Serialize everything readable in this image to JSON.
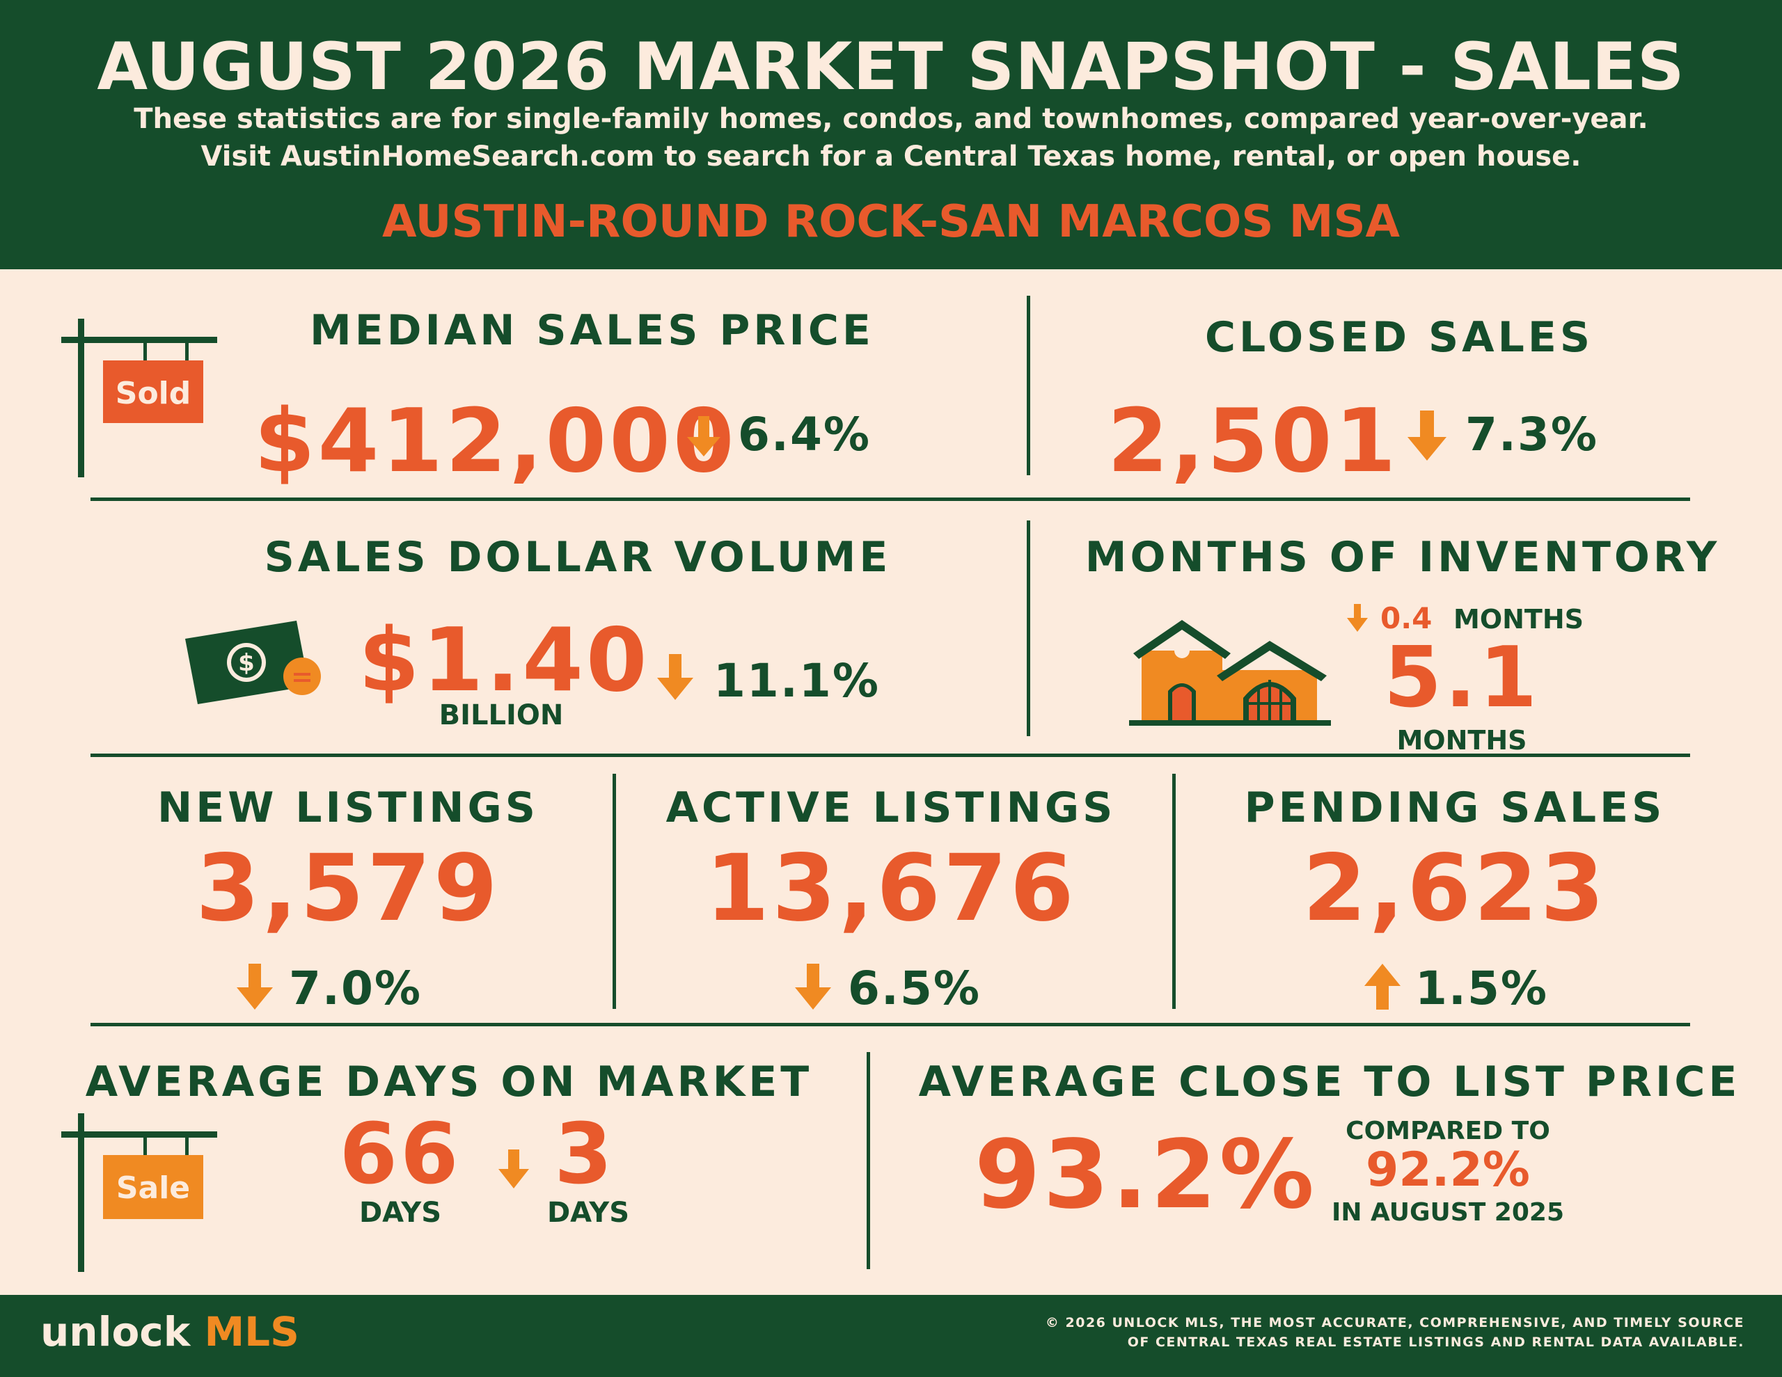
{
  "header": {
    "title": "AUGUST 2026 MARKET SNAPSHOT - SALES",
    "subtitle_line1": "These statistics are for single-family homes, condos, and townhomes, compared year-over-year.",
    "subtitle_line2": "Visit AustinHomeSearch.com to search for a Central Texas home, rental, or open house.",
    "region": "AUSTIN-ROUND ROCK-SAN MARCOS MSA"
  },
  "median_sales_price": {
    "label": "MEDIAN SALES PRICE",
    "sign_text": "Sold",
    "value": "$412,000",
    "change_direction": "down",
    "change": "6.4%"
  },
  "closed_sales": {
    "label": "CLOSED SALES",
    "value": "2,501",
    "change_direction": "down",
    "change": "7.3%"
  },
  "sales_dollar_volume": {
    "label": "SALES DOLLAR VOLUME",
    "value": "$1.40",
    "unit": "BILLION",
    "change_direction": "down",
    "change": "11.1%"
  },
  "months_of_inventory": {
    "label": "MONTHS OF INVENTORY",
    "change_direction": "down",
    "change_value": "0.4",
    "change_unit": "MONTHS",
    "value": "5.1",
    "unit": "MONTHS"
  },
  "new_listings": {
    "label": "NEW LISTINGS",
    "value": "3,579",
    "change_direction": "down",
    "change": "7.0%"
  },
  "active_listings": {
    "label": "ACTIVE LISTINGS",
    "value": "13,676",
    "change_direction": "down",
    "change": "6.5%"
  },
  "pending_sales": {
    "label": "PENDING SALES",
    "value": "2,623",
    "change_direction": "up",
    "change": "1.5%"
  },
  "average_days_on_market": {
    "label": "AVERAGE DAYS ON MARKET",
    "sign_text": "Sale",
    "value": "66",
    "unit": "DAYS",
    "change_direction": "down",
    "change_value": "3",
    "change_unit": "DAYS"
  },
  "average_close_to_list": {
    "label": "AVERAGE CLOSE TO LIST PRICE",
    "value": "93.2%",
    "compare_prefix": "COMPARED TO",
    "compare_value": "92.2%",
    "compare_suffix": "IN AUGUST 2025"
  },
  "footer": {
    "logo_part1": "unlock ",
    "logo_part2": "MLS",
    "note_line1": "© 2026 UNLOCK MLS, THE MOST ACCURATE, COMPREHENSIVE, AND TIMELY SOURCE",
    "note_line2": "OF CENTRAL TEXAS REAL ESTATE LISTINGS AND RENTAL DATA AVAILABLE."
  },
  "colors": {
    "dark_green": "#154d2b",
    "background_cream": "#fcebdd",
    "accent_red": "#e85a2c",
    "accent_orange": "#f08a22"
  }
}
